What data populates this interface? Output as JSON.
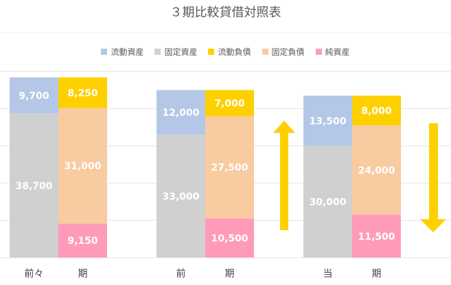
{
  "chart_data": {
    "type": "bar",
    "title": "３期比較貸借対照表",
    "legend_position": "top",
    "series": [
      {
        "name": "流動資産",
        "color": "#B4C7E7"
      },
      {
        "name": "固定資産",
        "color": "#D0D0D0"
      },
      {
        "name": "流動負債",
        "color": "#FFD000"
      },
      {
        "name": "固定負債",
        "color": "#F8CBA0"
      },
      {
        "name": "純資産",
        "color": "#FF9BB8"
      }
    ],
    "periods": [
      {
        "label_left": "前々",
        "label_right": "期",
        "assets": {
          "current": 9700,
          "fixed": 38700
        },
        "liabilities_equity": {
          "current_liabilities": 8250,
          "fixed_liabilities": 31000,
          "net_assets": 9150
        },
        "labels": {
          "current": "9,700",
          "fixed": "38,700",
          "current_liabilities": "8,250",
          "fixed_liabilities": "31,000",
          "net_assets": "9,150"
        }
      },
      {
        "label_left": "前",
        "label_right": "期",
        "assets": {
          "current": 12000,
          "fixed": 33000
        },
        "liabilities_equity": {
          "current_liabilities": 7000,
          "fixed_liabilities": 27500,
          "net_assets": 10500
        },
        "labels": {
          "current": "12,000",
          "fixed": "33,000",
          "current_liabilities": "7,000",
          "fixed_liabilities": "27,500",
          "net_assets": "10,500"
        }
      },
      {
        "label_left": "当",
        "label_right": "期",
        "assets": {
          "current": 13500,
          "fixed": 30000
        },
        "liabilities_equity": {
          "current_liabilities": 8000,
          "fixed_liabilities": 24000,
          "net_assets": 11500
        },
        "labels": {
          "current": "13,500",
          "fixed": "30,000",
          "current_liabilities": "8,000",
          "fixed_liabilities": "24,000",
          "net_assets": "11,500"
        }
      }
    ],
    "ylim": [
      0,
      60000
    ],
    "grid": true,
    "annotations": [
      {
        "type": "arrow",
        "direction": "up",
        "color": "#FFD000"
      },
      {
        "type": "arrow",
        "direction": "down",
        "color": "#FFD000"
      }
    ]
  }
}
